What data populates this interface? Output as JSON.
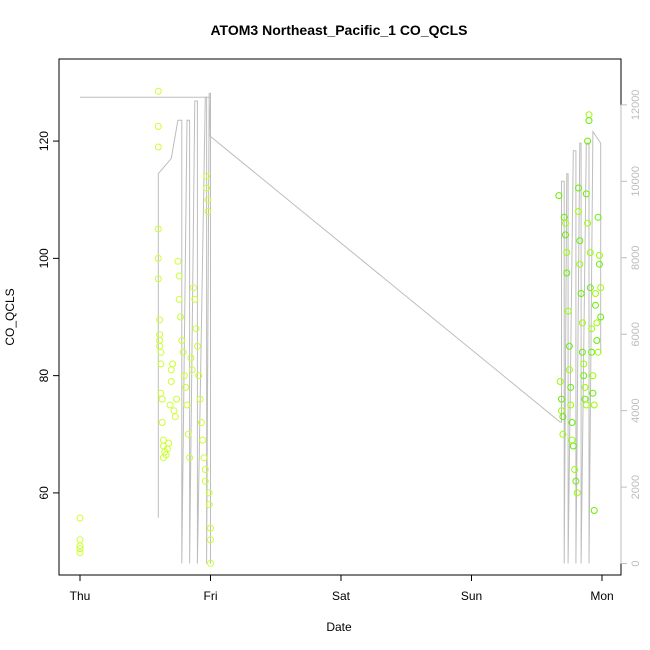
{
  "chart_data": {
    "type": "scatter",
    "title": "ATOM3 Northeast_Pacific_1 CO_QCLS",
    "xlabel": "Date",
    "ylabel": "CO_QCLS",
    "x_ticks": [
      "Thu",
      "Fri",
      "Sat",
      "Sun",
      "Mon"
    ],
    "x_range_days": [
      0,
      4
    ],
    "ylim": [
      46,
      134
    ],
    "y_ticks": [
      60,
      80,
      100,
      120
    ],
    "y2lim": [
      -300,
      13200
    ],
    "y2_ticks": [
      0,
      2000,
      4000,
      6000,
      8000,
      10000,
      12000
    ],
    "grid": false,
    "legend": "none",
    "point_colors": [
      "#ccff33",
      "#99ff00",
      "#66ee00"
    ],
    "line_color": "#bdbdbd",
    "series": [
      {
        "kind": "points",
        "points": [
          [
            0.0,
            55.7
          ],
          [
            0.0,
            52.0
          ],
          [
            0.0,
            51.0
          ],
          [
            0.0,
            50.5
          ],
          [
            0.0,
            49.8
          ],
          [
            0.6,
            128.5
          ],
          [
            0.6,
            122.5
          ],
          [
            0.6,
            119.0
          ],
          [
            0.6,
            105.0
          ],
          [
            0.6,
            100.0
          ],
          [
            0.6,
            96.5
          ],
          [
            0.61,
            89.5
          ],
          [
            0.61,
            87.0
          ],
          [
            0.61,
            86.0
          ],
          [
            0.61,
            85.0
          ],
          [
            0.62,
            84.0
          ],
          [
            0.62,
            82.0
          ],
          [
            0.62,
            77.0
          ],
          [
            0.63,
            76.0
          ],
          [
            0.63,
            72.0
          ],
          [
            0.64,
            69.0
          ],
          [
            0.64,
            68.0
          ],
          [
            0.64,
            66.0
          ],
          [
            0.65,
            67.0
          ],
          [
            0.66,
            66.5
          ],
          [
            0.67,
            67.5
          ],
          [
            0.68,
            68.5
          ],
          [
            0.69,
            75.0
          ],
          [
            0.7,
            79.0
          ],
          [
            0.7,
            81.0
          ],
          [
            0.71,
            82.0
          ],
          [
            0.72,
            74.0
          ],
          [
            0.73,
            73.0
          ],
          [
            0.74,
            76.0
          ],
          [
            0.75,
            99.5
          ],
          [
            0.76,
            97.0
          ],
          [
            0.76,
            93.0
          ],
          [
            0.77,
            90.0
          ],
          [
            0.78,
            86.0
          ],
          [
            0.79,
            84.0
          ],
          [
            0.8,
            80.0
          ],
          [
            0.81,
            78.0
          ],
          [
            0.82,
            75.0
          ],
          [
            0.83,
            70.0
          ],
          [
            0.84,
            66.0
          ],
          [
            0.85,
            83.0
          ],
          [
            0.86,
            81.0
          ],
          [
            0.87,
            95.0
          ],
          [
            0.88,
            93.0
          ],
          [
            0.89,
            88.0
          ],
          [
            0.9,
            85.0
          ],
          [
            0.91,
            80.0
          ],
          [
            0.92,
            76.0
          ],
          [
            0.93,
            72.0
          ],
          [
            0.94,
            69.0
          ],
          [
            0.95,
            66.0
          ],
          [
            0.96,
            64.0
          ],
          [
            0.96,
            62.0
          ],
          [
            0.97,
            114.0
          ],
          [
            0.97,
            112.0
          ],
          [
            0.98,
            110.0
          ],
          [
            0.98,
            108.0
          ],
          [
            0.99,
            60.0
          ],
          [
            0.99,
            58.0
          ],
          [
            1.0,
            54.0
          ],
          [
            1.0,
            52.0
          ],
          [
            1.0,
            48.0
          ],
          [
            3.67,
            110.7
          ],
          [
            3.68,
            79.0
          ],
          [
            3.69,
            76.0
          ],
          [
            3.69,
            74.0
          ],
          [
            3.7,
            73.0
          ],
          [
            3.7,
            70.0
          ],
          [
            3.71,
            107.0
          ],
          [
            3.72,
            106.0
          ],
          [
            3.72,
            104.0
          ],
          [
            3.73,
            101.0
          ],
          [
            3.73,
            97.5
          ],
          [
            3.74,
            91.0
          ],
          [
            3.75,
            85.0
          ],
          [
            3.75,
            81.0
          ],
          [
            3.76,
            78.0
          ],
          [
            3.76,
            75.0
          ],
          [
            3.77,
            72.0
          ],
          [
            3.77,
            69.0
          ],
          [
            3.78,
            68.0
          ],
          [
            3.79,
            64.0
          ],
          [
            3.8,
            62.0
          ],
          [
            3.81,
            60.0
          ],
          [
            3.82,
            112.0
          ],
          [
            3.82,
            108.0
          ],
          [
            3.83,
            103.0
          ],
          [
            3.83,
            99.0
          ],
          [
            3.84,
            94.0
          ],
          [
            3.85,
            89.0
          ],
          [
            3.85,
            84.0
          ],
          [
            3.86,
            82.0
          ],
          [
            3.86,
            80.0
          ],
          [
            3.87,
            78.0
          ],
          [
            3.87,
            76.0
          ],
          [
            3.88,
            75.0
          ],
          [
            3.88,
            111.0
          ],
          [
            3.89,
            106.0
          ],
          [
            3.89,
            120.0
          ],
          [
            3.9,
            124.5
          ],
          [
            3.9,
            123.5
          ],
          [
            3.91,
            101.0
          ],
          [
            3.91,
            95.0
          ],
          [
            3.92,
            88.0
          ],
          [
            3.92,
            84.0
          ],
          [
            3.93,
            80.0
          ],
          [
            3.93,
            77.0
          ],
          [
            3.94,
            75.0
          ],
          [
            3.94,
            57.0
          ],
          [
            3.95,
            94.0
          ],
          [
            3.95,
            92.0
          ],
          [
            3.96,
            89.0
          ],
          [
            3.96,
            86.0
          ],
          [
            3.97,
            84.0
          ],
          [
            3.97,
            107.0
          ],
          [
            3.98,
            100.5
          ],
          [
            3.98,
            99.0
          ],
          [
            3.99,
            95.0
          ],
          [
            3.99,
            90.0
          ]
        ]
      },
      {
        "kind": "line",
        "axis": "right",
        "points": [
          [
            0.0,
            12200
          ],
          [
            1.0,
            12200
          ],
          [
            1.0,
            12300
          ],
          [
            0.99,
            11200
          ],
          [
            3.68,
            3700
          ],
          [
            3.69,
            3700
          ],
          [
            3.69,
            10000
          ],
          [
            3.71,
            10000
          ],
          [
            3.71,
            0
          ],
          [
            3.73,
            10200
          ],
          [
            3.74,
            10200
          ],
          [
            3.74,
            0
          ],
          [
            3.78,
            10800
          ],
          [
            3.8,
            10800
          ],
          [
            3.8,
            0
          ],
          [
            3.83,
            11000
          ],
          [
            3.84,
            11000
          ],
          [
            3.84,
            0
          ],
          [
            3.88,
            11000
          ],
          [
            3.9,
            11000
          ],
          [
            3.9,
            0
          ],
          [
            3.93,
            11300
          ],
          [
            3.99,
            11000
          ],
          [
            3.99,
            6500
          ],
          [
            3.99,
            5500
          ]
        ]
      },
      {
        "kind": "line",
        "axis": "right",
        "points": [
          [
            0.6,
            1200
          ],
          [
            0.6,
            9500
          ],
          [
            0.6,
            10200
          ],
          [
            0.7,
            10600
          ],
          [
            0.75,
            11600
          ],
          [
            0.78,
            11600
          ],
          [
            0.78,
            0
          ],
          [
            0.82,
            11600
          ],
          [
            0.84,
            11600
          ],
          [
            0.84,
            0
          ],
          [
            0.88,
            12100
          ],
          [
            0.9,
            12100
          ],
          [
            0.9,
            0
          ],
          [
            0.96,
            12200
          ],
          [
            0.97,
            12200
          ],
          [
            0.97,
            0
          ],
          [
            0.99,
            12300
          ],
          [
            1.0,
            12300
          ],
          [
            1.0,
            0
          ]
        ]
      }
    ]
  }
}
